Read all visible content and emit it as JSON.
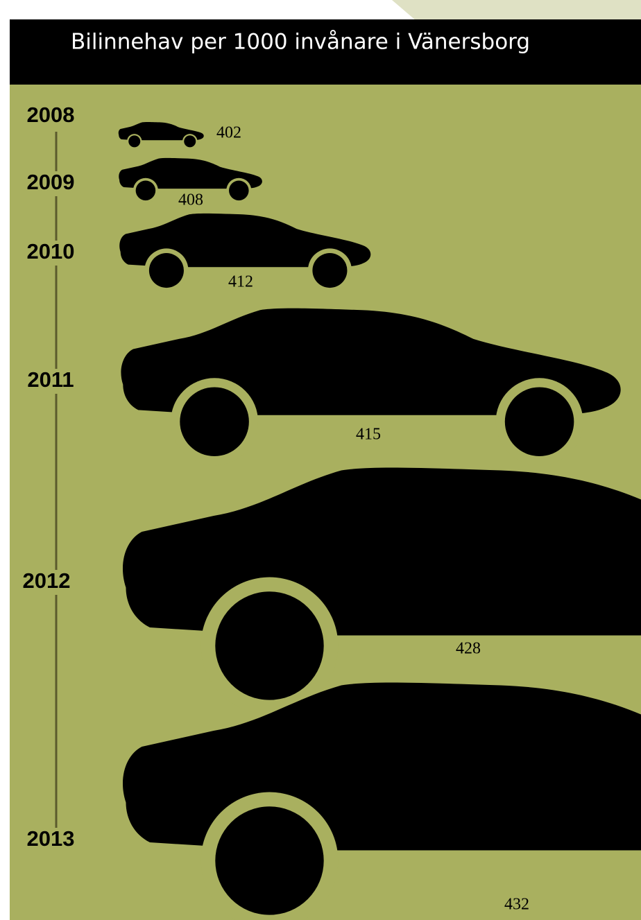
{
  "chart_data": {
    "type": "pictogram",
    "title": "Bilinnehav per 1000 invånare i Vänersborg",
    "categories": [
      "2008",
      "2009",
      "2010",
      "2011",
      "2012",
      "2013"
    ],
    "values": [
      402,
      408,
      412,
      415,
      428,
      432
    ],
    "color": "#000000"
  }
}
